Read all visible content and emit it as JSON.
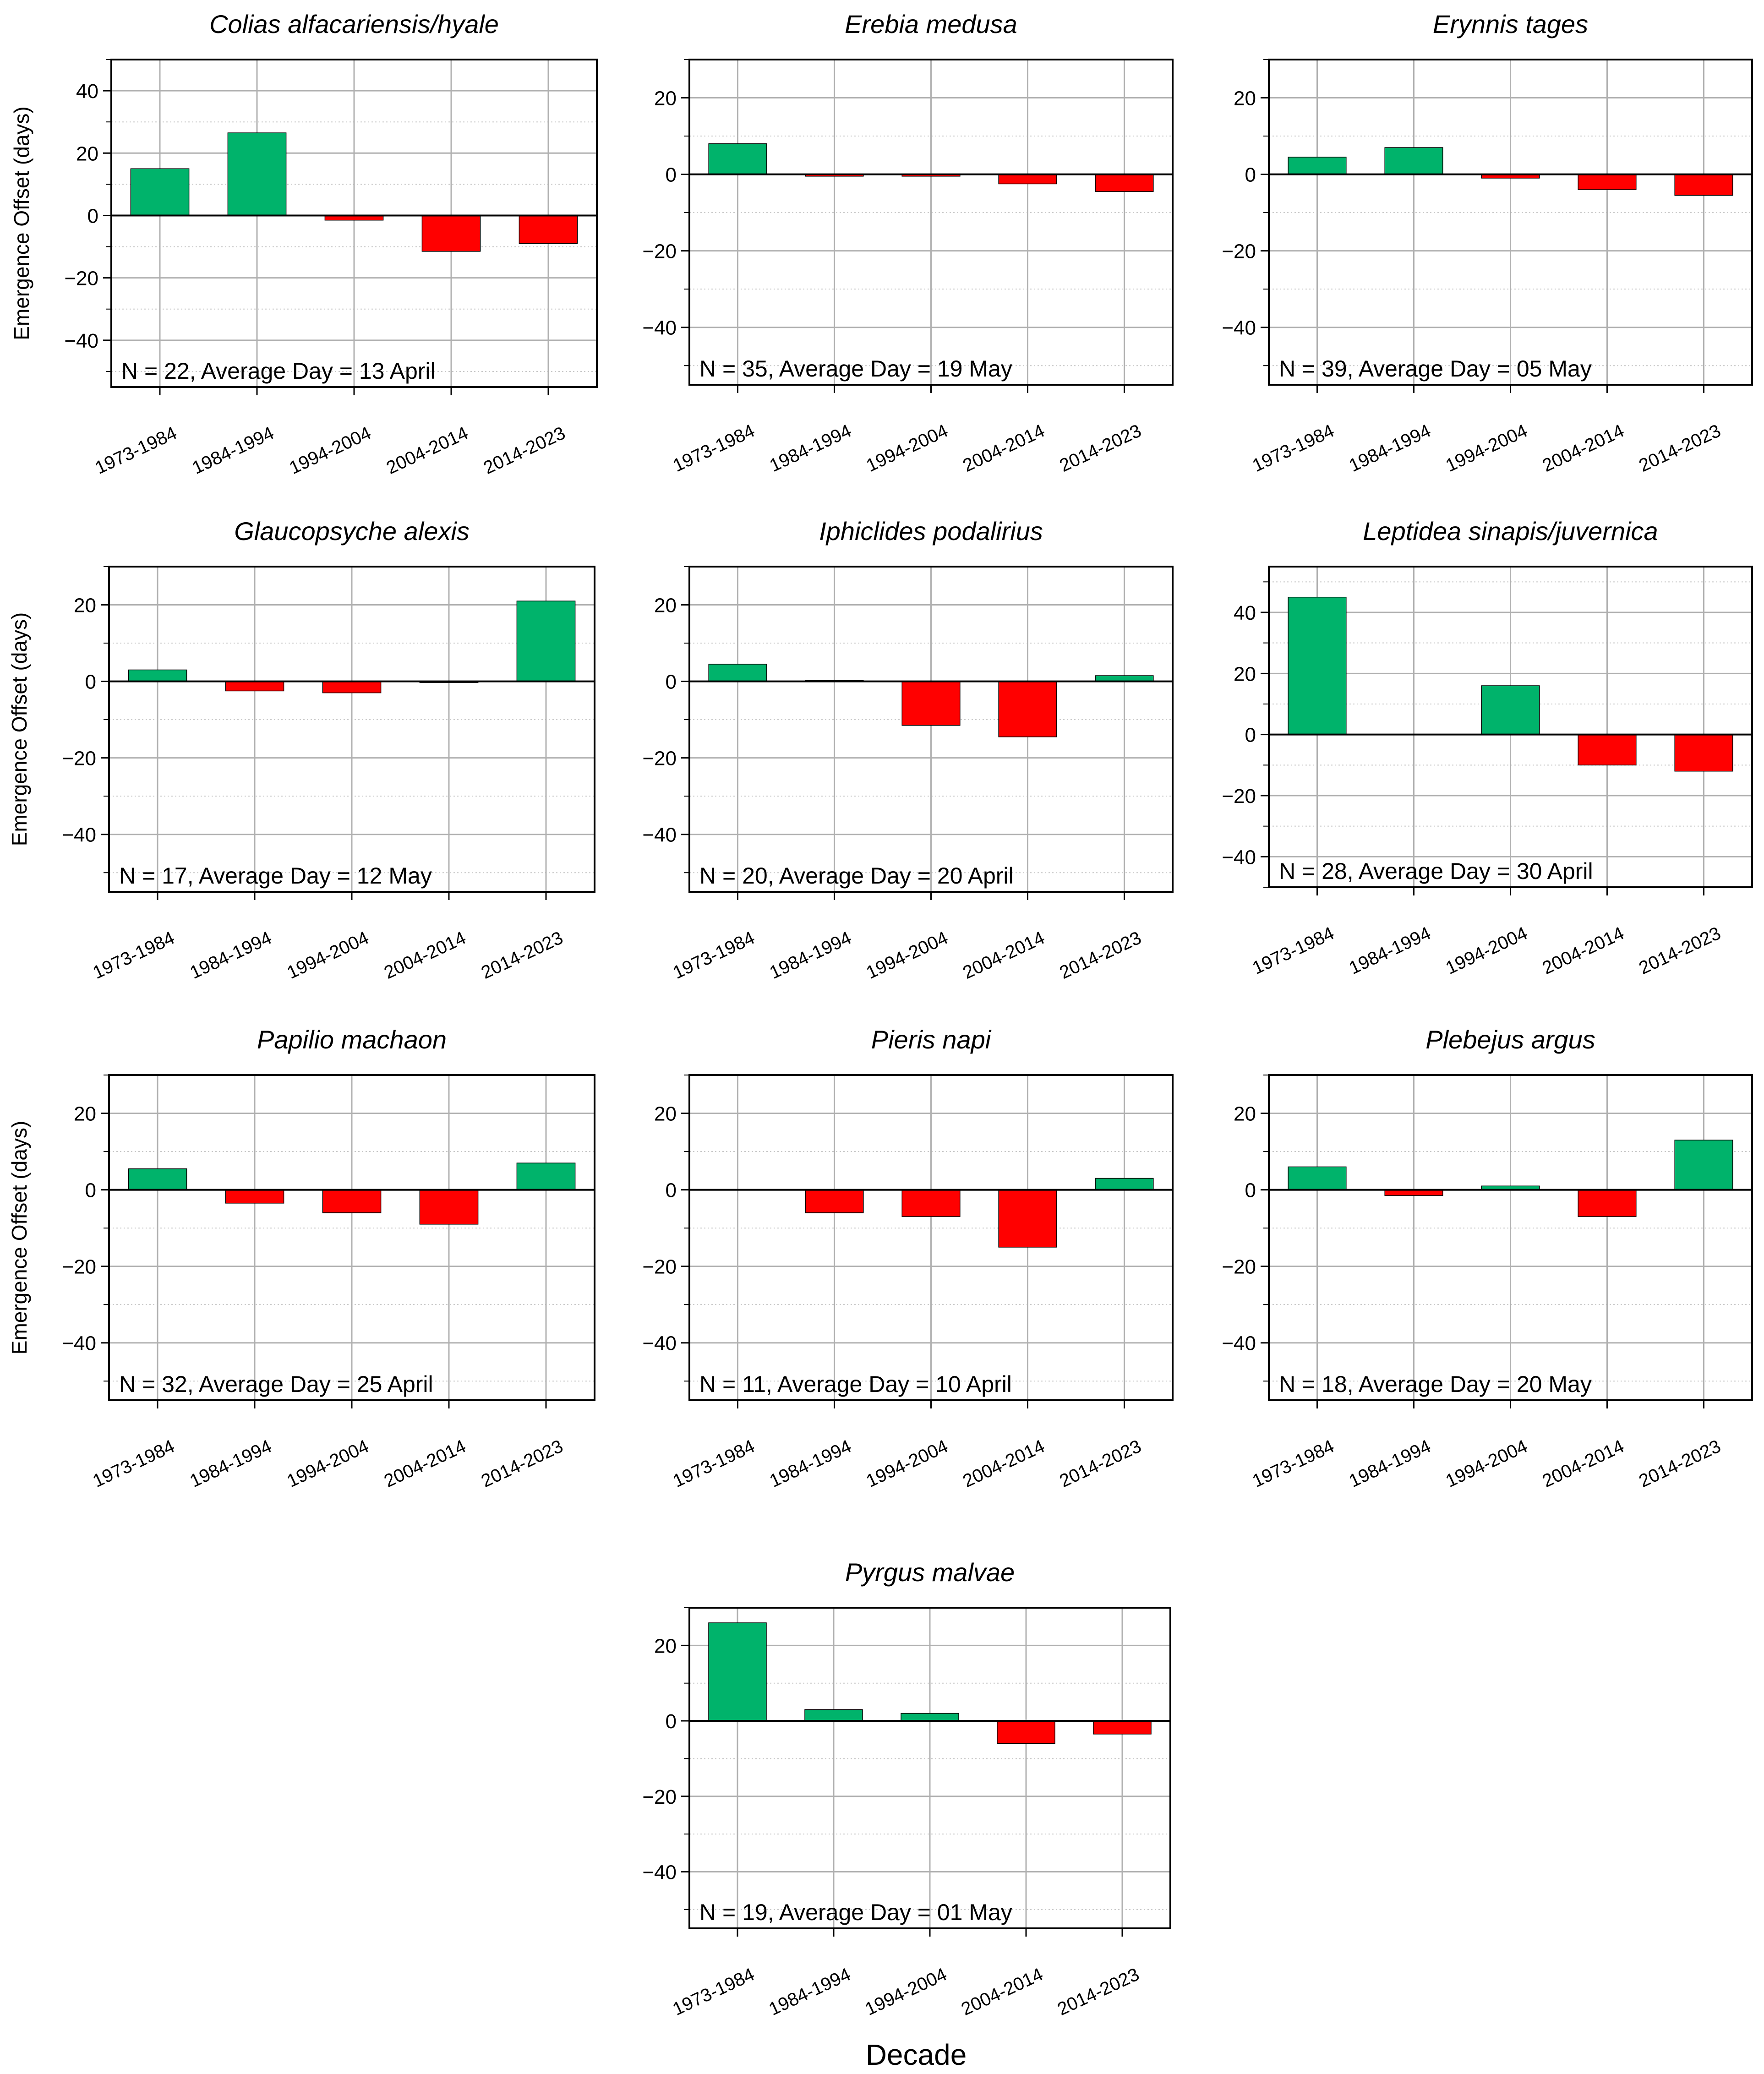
{
  "figure": {
    "xlabel": "Decade",
    "ylabel": "Emergence Offset (days)"
  },
  "colors": {
    "positive": "#00b36b",
    "negative": "#ff0000",
    "grid_major": "#b0b0b0",
    "grid_minor": "#c8c8c8",
    "axis": "#000000"
  },
  "chart_data": [
    {
      "type": "bar",
      "title": "Colias alfacariensis/hyale",
      "categories": [
        "1973-1984",
        "1984-1994",
        "1994-2004",
        "2004-2014",
        "2014-2023"
      ],
      "values": [
        15,
        26.5,
        -1.5,
        -11.5,
        -9
      ],
      "annotation": "N = 22, Average Day = 13 April",
      "ylim": [
        -55,
        50
      ],
      "yticks": [
        40,
        20,
        0,
        -20,
        -40
      ],
      "ytick_labels": [
        "40",
        "20",
        "0",
        "−20",
        "−40"
      ],
      "ylabel": "Emergence Offset (days)"
    },
    {
      "type": "bar",
      "title": "Erebia medusa",
      "categories": [
        "1973-1984",
        "1984-1994",
        "1994-2004",
        "2004-2014",
        "2014-2023"
      ],
      "values": [
        8,
        -0.5,
        -0.5,
        -2.5,
        -4.5
      ],
      "annotation": "N = 35, Average Day = 19 May",
      "ylim": [
        -55,
        30
      ],
      "yticks": [
        20,
        0,
        -20,
        -40
      ],
      "ytick_labels": [
        "20",
        "0",
        "−20",
        "−40"
      ],
      "ylabel": ""
    },
    {
      "type": "bar",
      "title": "Erynnis tages",
      "categories": [
        "1973-1984",
        "1984-1994",
        "1994-2004",
        "2004-2014",
        "2014-2023"
      ],
      "values": [
        4.5,
        7,
        -1,
        -4,
        -5.5
      ],
      "annotation": "N = 39, Average Day = 05 May",
      "ylim": [
        -55,
        30
      ],
      "yticks": [
        20,
        0,
        -20,
        -40
      ],
      "ytick_labels": [
        "20",
        "0",
        "−20",
        "−40"
      ],
      "ylabel": ""
    },
    {
      "type": "bar",
      "title": "Glaucopsyche alexis",
      "categories": [
        "1973-1984",
        "1984-1994",
        "1994-2004",
        "2004-2014",
        "2014-2023"
      ],
      "values": [
        3,
        -2.5,
        -3,
        -0.3,
        21
      ],
      "annotation": "N = 17, Average Day = 12 May",
      "ylim": [
        -55,
        30
      ],
      "yticks": [
        20,
        0,
        -20,
        -40
      ],
      "ytick_labels": [
        "20",
        "0",
        "−20",
        "−40"
      ],
      "ylabel": "Emergence Offset (days)"
    },
    {
      "type": "bar",
      "title": "Iphiclides podalirius",
      "categories": [
        "1973-1984",
        "1984-1994",
        "1994-2004",
        "2004-2014",
        "2014-2023"
      ],
      "values": [
        4.5,
        0.3,
        -11.5,
        -14.5,
        1.5
      ],
      "annotation": "N = 20, Average Day = 20 April",
      "ylim": [
        -55,
        30
      ],
      "yticks": [
        20,
        0,
        -20,
        -40
      ],
      "ytick_labels": [
        "20",
        "0",
        "−20",
        "−40"
      ],
      "ylabel": ""
    },
    {
      "type": "bar",
      "title": "Leptidea sinapis/juvernica",
      "categories": [
        "1973-1984",
        "1984-1994",
        "1994-2004",
        "2004-2014",
        "2014-2023"
      ],
      "values": [
        45,
        0,
        16,
        -10,
        -12
      ],
      "annotation": "N = 28, Average Day = 30 April",
      "ylim": [
        -50,
        55
      ],
      "yticks": [
        40,
        20,
        0,
        -20,
        -40
      ],
      "ytick_labels": [
        "40",
        "20",
        "0",
        "−20",
        "−40"
      ],
      "ylabel": ""
    },
    {
      "type": "bar",
      "title": "Papilio machaon",
      "categories": [
        "1973-1984",
        "1984-1994",
        "1994-2004",
        "2004-2014",
        "2014-2023"
      ],
      "values": [
        5.5,
        -3.5,
        -6,
        -9,
        7
      ],
      "annotation": "N = 32, Average Day = 25 April",
      "ylim": [
        -55,
        30
      ],
      "yticks": [
        20,
        0,
        -20,
        -40
      ],
      "ytick_labels": [
        "20",
        "0",
        "−20",
        "−40"
      ],
      "ylabel": "Emergence Offset (days)"
    },
    {
      "type": "bar",
      "title": "Pieris napi",
      "categories": [
        "1973-1984",
        "1984-1994",
        "1994-2004",
        "2004-2014",
        "2014-2023"
      ],
      "values": [
        0,
        -6,
        -7,
        -15,
        3
      ],
      "annotation": "N = 11, Average Day = 10 April",
      "ylim": [
        -55,
        30
      ],
      "yticks": [
        20,
        0,
        -20,
        -40
      ],
      "ytick_labels": [
        "20",
        "0",
        "−20",
        "−40"
      ],
      "ylabel": ""
    },
    {
      "type": "bar",
      "title": "Plebejus argus",
      "categories": [
        "1973-1984",
        "1984-1994",
        "1994-2004",
        "2004-2014",
        "2014-2023"
      ],
      "values": [
        6,
        -1.5,
        1,
        -7,
        13
      ],
      "annotation": "N = 18, Average Day = 20 May",
      "ylim": [
        -55,
        30
      ],
      "yticks": [
        20,
        0,
        -20,
        -40
      ],
      "ytick_labels": [
        "20",
        "0",
        "−20",
        "−40"
      ],
      "ylabel": ""
    },
    {
      "type": "bar",
      "title": "Pyrgus malvae",
      "categories": [
        "1973-1984",
        "1984-1994",
        "1994-2004",
        "2004-2014",
        "2014-2023"
      ],
      "values": [
        26,
        3,
        2,
        -6,
        -3.5
      ],
      "annotation": "N = 19, Average Day = 01 May",
      "ylim": [
        -55,
        30
      ],
      "yticks": [
        20,
        0,
        -20,
        -40
      ],
      "ytick_labels": [
        "20",
        "0",
        "−20",
        "−40"
      ],
      "ylabel": ""
    }
  ]
}
